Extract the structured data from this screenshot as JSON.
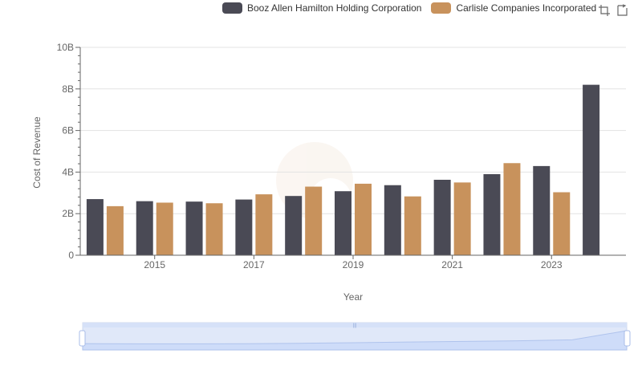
{
  "legend": [
    {
      "name": "Booz Allen Hamilton Holding Corporation",
      "color": "#4a4a55"
    },
    {
      "name": "Carlisle Companies Incorporated",
      "color": "#c8925c"
    }
  ],
  "toolbox": {
    "icons": [
      "zoom-icon",
      "zoom-reset-icon"
    ]
  },
  "chart_data": {
    "type": "bar",
    "xlabel": "Year",
    "ylabel": "Cost of Revenue",
    "ylim": [
      0,
      10000000000
    ],
    "y_ticks": [
      {
        "value": 0,
        "label": "0"
      },
      {
        "value": 2000000000,
        "label": "2B"
      },
      {
        "value": 4000000000,
        "label": "4B"
      },
      {
        "value": 6000000000,
        "label": "6B"
      },
      {
        "value": 8000000000,
        "label": "8B"
      },
      {
        "value": 10000000000,
        "label": "10B"
      }
    ],
    "x_tick_labels": [
      "2015",
      "2017",
      "2019",
      "2021",
      "2023"
    ],
    "categories": [
      "2014",
      "2015",
      "2016",
      "2017",
      "2018",
      "2019",
      "2020",
      "2021",
      "2022",
      "2023",
      "2024"
    ],
    "series": [
      {
        "name": "Booz Allen Hamilton Holding Corporation",
        "color": "#4a4a55",
        "values": [
          2700000000,
          2600000000,
          2580000000,
          2680000000,
          2850000000,
          3080000000,
          3370000000,
          3630000000,
          3900000000,
          4290000000,
          8200000000
        ]
      },
      {
        "name": "Carlisle Companies Incorporated",
        "color": "#c8925c",
        "values": [
          2360000000,
          2530000000,
          2500000000,
          2930000000,
          3300000000,
          3440000000,
          2830000000,
          3500000000,
          4430000000,
          3030000000,
          null
        ]
      }
    ],
    "grid": true,
    "legend_position": "top-right",
    "data_zoom": {
      "start_percent": 0,
      "end_percent": 100
    }
  }
}
